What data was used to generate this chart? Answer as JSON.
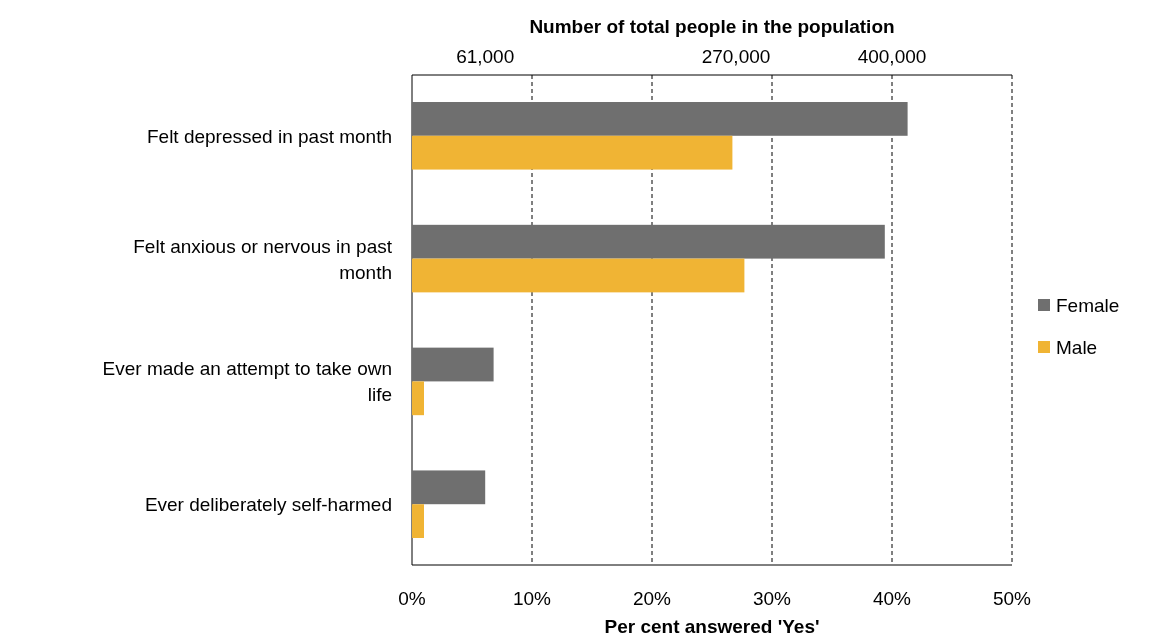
{
  "chart_data": {
    "type": "bar",
    "orientation": "horizontal",
    "categories": [
      "Felt depressed in past month",
      "Felt anxious or nervous in past month",
      "Ever made an attempt to take own life",
      "Ever deliberately self-harmed"
    ],
    "series": [
      {
        "name": "Female",
        "color": "#6f6f6f",
        "values": [
          41.3,
          39.4,
          6.8,
          6.1
        ]
      },
      {
        "name": "Male",
        "color": "#f0b434",
        "values": [
          26.7,
          27.7,
          1.0,
          1.0
        ]
      }
    ],
    "xlim": [
      0,
      50
    ],
    "xticks": [
      {
        "value": 0,
        "label": "0%"
      },
      {
        "value": 10,
        "label": "10%"
      },
      {
        "value": 20,
        "label": "20%"
      },
      {
        "value": 30,
        "label": "30%"
      },
      {
        "value": 40,
        "label": "40%"
      },
      {
        "value": 50,
        "label": "50%"
      }
    ],
    "x2lim": [
      0,
      500000
    ],
    "x2ticks": [
      {
        "value": 61000,
        "label": "61,000"
      },
      {
        "value": 270000,
        "label": "270,000"
      },
      {
        "value": 400000,
        "label": "400,000"
      }
    ],
    "xlabel": "Per cent answered 'Yes'",
    "x2label": "Number of total people in the population",
    "grid": "x",
    "legend": "right"
  }
}
